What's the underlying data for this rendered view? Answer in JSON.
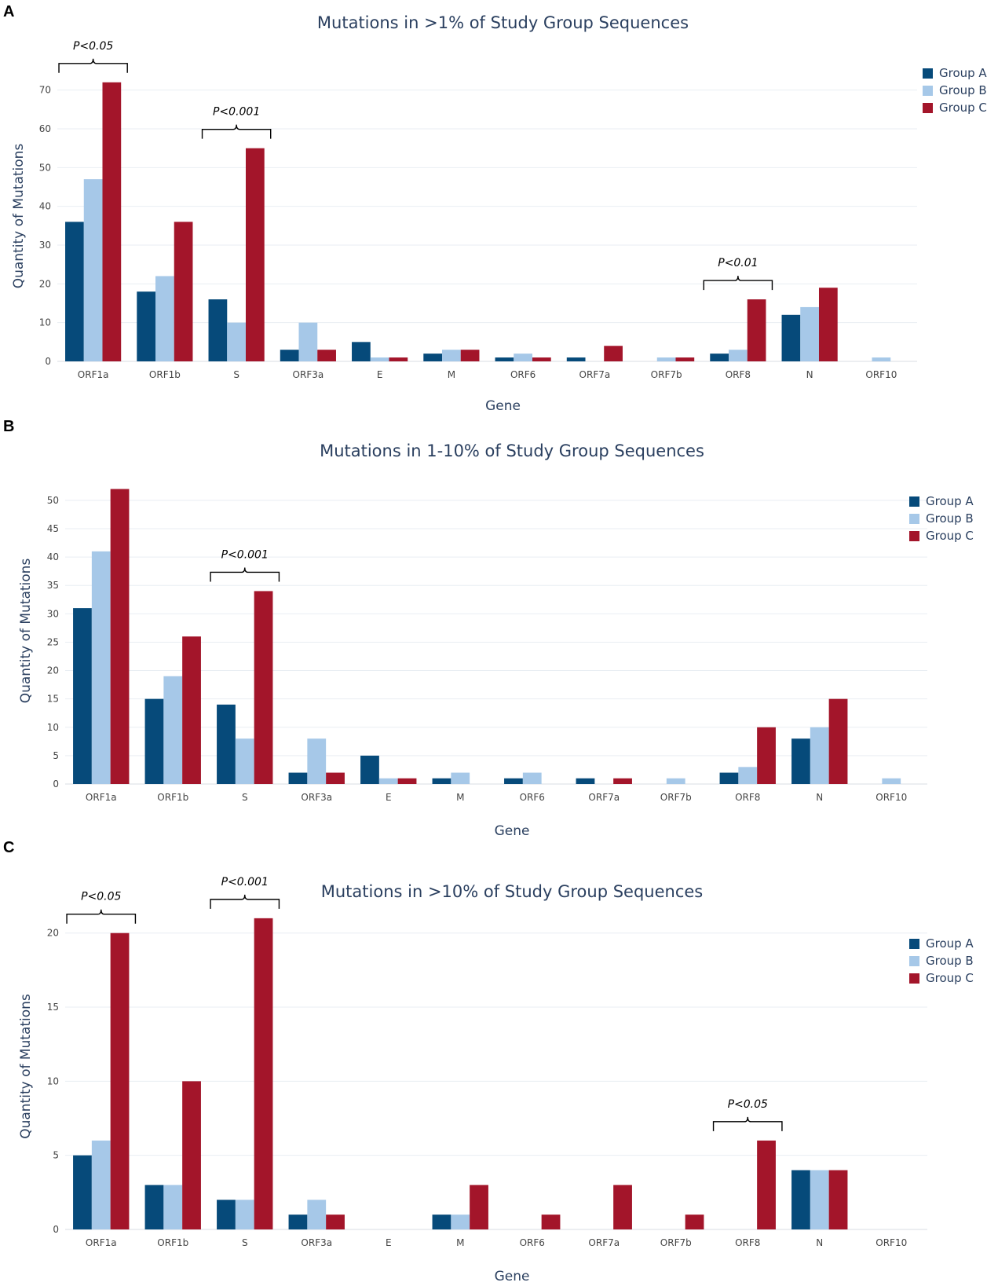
{
  "colors": {
    "Group A": "#064a7a",
    "Group B": "#a6c8e8",
    "Group C": "#a3152a"
  },
  "panels": [
    {
      "label": "A"
    },
    {
      "label": "B"
    },
    {
      "label": "C"
    }
  ],
  "chart_data": [
    {
      "type": "bar",
      "title": "Mutations in >1% of Study Group Sequences",
      "xlabel": "Gene",
      "ylabel": "Quantity of Mutations",
      "categories": [
        "ORF1a",
        "ORF1b",
        "S",
        "ORF3a",
        "E",
        "M",
        "ORF6",
        "ORF7a",
        "ORF7b",
        "ORF8",
        "N",
        "ORF10"
      ],
      "ylim": [
        0,
        75
      ],
      "yticks": [
        0,
        10,
        20,
        30,
        40,
        50,
        60,
        70
      ],
      "legend_position": "top-right",
      "series": [
        {
          "name": "Group A",
          "values": [
            36,
            18,
            16,
            3,
            5,
            2,
            1,
            1,
            0,
            2,
            12,
            0
          ]
        },
        {
          "name": "Group B",
          "values": [
            47,
            22,
            10,
            10,
            1,
            3,
            2,
            0,
            1,
            3,
            14,
            1
          ]
        },
        {
          "name": "Group C",
          "values": [
            72,
            36,
            55,
            3,
            1,
            3,
            1,
            4,
            1,
            16,
            19,
            0
          ]
        }
      ],
      "annotations": [
        {
          "text": "P<0.05",
          "category": "ORF1a"
        },
        {
          "text": "P<0.001",
          "category": "S"
        },
        {
          "text": "P<0.01",
          "category": "ORF8"
        }
      ]
    },
    {
      "type": "bar",
      "title": "Mutations in 1-10% of Study Group Sequences",
      "xlabel": "Gene",
      "ylabel": "Quantity of Mutations",
      "categories": [
        "ORF1a",
        "ORF1b",
        "S",
        "ORF3a",
        "E",
        "M",
        "ORF6",
        "ORF7a",
        "ORF7b",
        "ORF8",
        "N",
        "ORF10"
      ],
      "ylim": [
        0,
        54
      ],
      "yticks": [
        0,
        5,
        10,
        15,
        20,
        25,
        30,
        35,
        40,
        45,
        50
      ],
      "legend_position": "top-right",
      "series": [
        {
          "name": "Group A",
          "values": [
            31,
            15,
            14,
            2,
            5,
            1,
            1,
            1,
            0,
            2,
            8,
            0
          ]
        },
        {
          "name": "Group B",
          "values": [
            41,
            19,
            8,
            8,
            1,
            2,
            2,
            0,
            1,
            3,
            10,
            1
          ]
        },
        {
          "name": "Group C",
          "values": [
            52,
            26,
            34,
            2,
            1,
            0,
            0,
            1,
            0,
            10,
            15,
            0
          ]
        }
      ],
      "annotations": [
        {
          "text": "P<0.001",
          "category": "S"
        }
      ]
    },
    {
      "type": "bar",
      "title": "Mutations in >10% of Study Group Sequences",
      "xlabel": "Gene",
      "ylabel": "Quantity of Mutations",
      "categories": [
        "ORF1a",
        "ORF1b",
        "S",
        "ORF3a",
        "E",
        "M",
        "ORF6",
        "ORF7a",
        "ORF7b",
        "ORF8",
        "N",
        "ORF10"
      ],
      "ylim": [
        0,
        22
      ],
      "yticks": [
        0,
        5,
        10,
        15,
        20
      ],
      "legend_position": "top-right",
      "series": [
        {
          "name": "Group A",
          "values": [
            5,
            3,
            2,
            1,
            0,
            1,
            0,
            0,
            0,
            0,
            4,
            0
          ]
        },
        {
          "name": "Group B",
          "values": [
            6,
            3,
            2,
            2,
            0,
            1,
            0,
            0,
            0,
            0,
            4,
            0
          ]
        },
        {
          "name": "Group C",
          "values": [
            20,
            10,
            21,
            1,
            0,
            3,
            1,
            3,
            1,
            6,
            4,
            0
          ]
        }
      ],
      "annotations": [
        {
          "text": "P<0.05",
          "category": "ORF1a"
        },
        {
          "text": "P<0.001",
          "category": "S"
        },
        {
          "text": "P<0.05",
          "category": "ORF8"
        }
      ]
    }
  ]
}
